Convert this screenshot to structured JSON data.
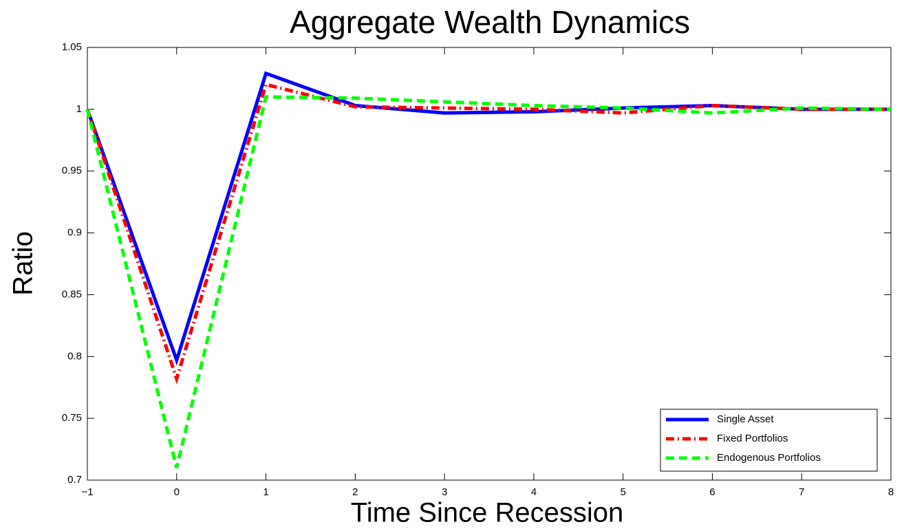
{
  "chart_data": {
    "type": "line",
    "title": "Aggregate Wealth Dynamics",
    "x_label": "Time Since Recession",
    "y_label": "Ratio",
    "x": [
      -1,
      0,
      1,
      2,
      3,
      4,
      5,
      6,
      7,
      8
    ],
    "series": [
      {
        "name": "Single Asset",
        "color": "#0000ff",
        "style": "solid",
        "values": [
          1.0,
          0.797,
          1.029,
          1.003,
          0.997,
          0.998,
          1.001,
          1.003,
          1.0,
          1.0
        ]
      },
      {
        "name": "Fixed Portfolios",
        "color": "#ff0000",
        "style": "dashdot",
        "values": [
          1.0,
          0.782,
          1.02,
          1.002,
          1.001,
          1.0,
          0.997,
          1.003,
          1.0,
          1.0
        ]
      },
      {
        "name": "Endogenous Portfolios",
        "color": "#00ff00",
        "style": "dashed",
        "values": [
          1.0,
          0.71,
          1.01,
          1.009,
          1.006,
          1.003,
          1.001,
          0.997,
          1.001,
          1.0
        ]
      }
    ],
    "xlim": [
      -1,
      8
    ],
    "ylim": [
      0.7,
      1.05
    ],
    "xticks": [
      {
        "value": -1,
        "label": "−1"
      },
      0,
      1,
      2,
      3,
      4,
      5,
      6,
      7,
      8
    ],
    "yticks": [
      0.7,
      0.75,
      0.8,
      0.85,
      0.9,
      0.95,
      1,
      1.05
    ],
    "grid": false,
    "legend_position": "lower right"
  }
}
